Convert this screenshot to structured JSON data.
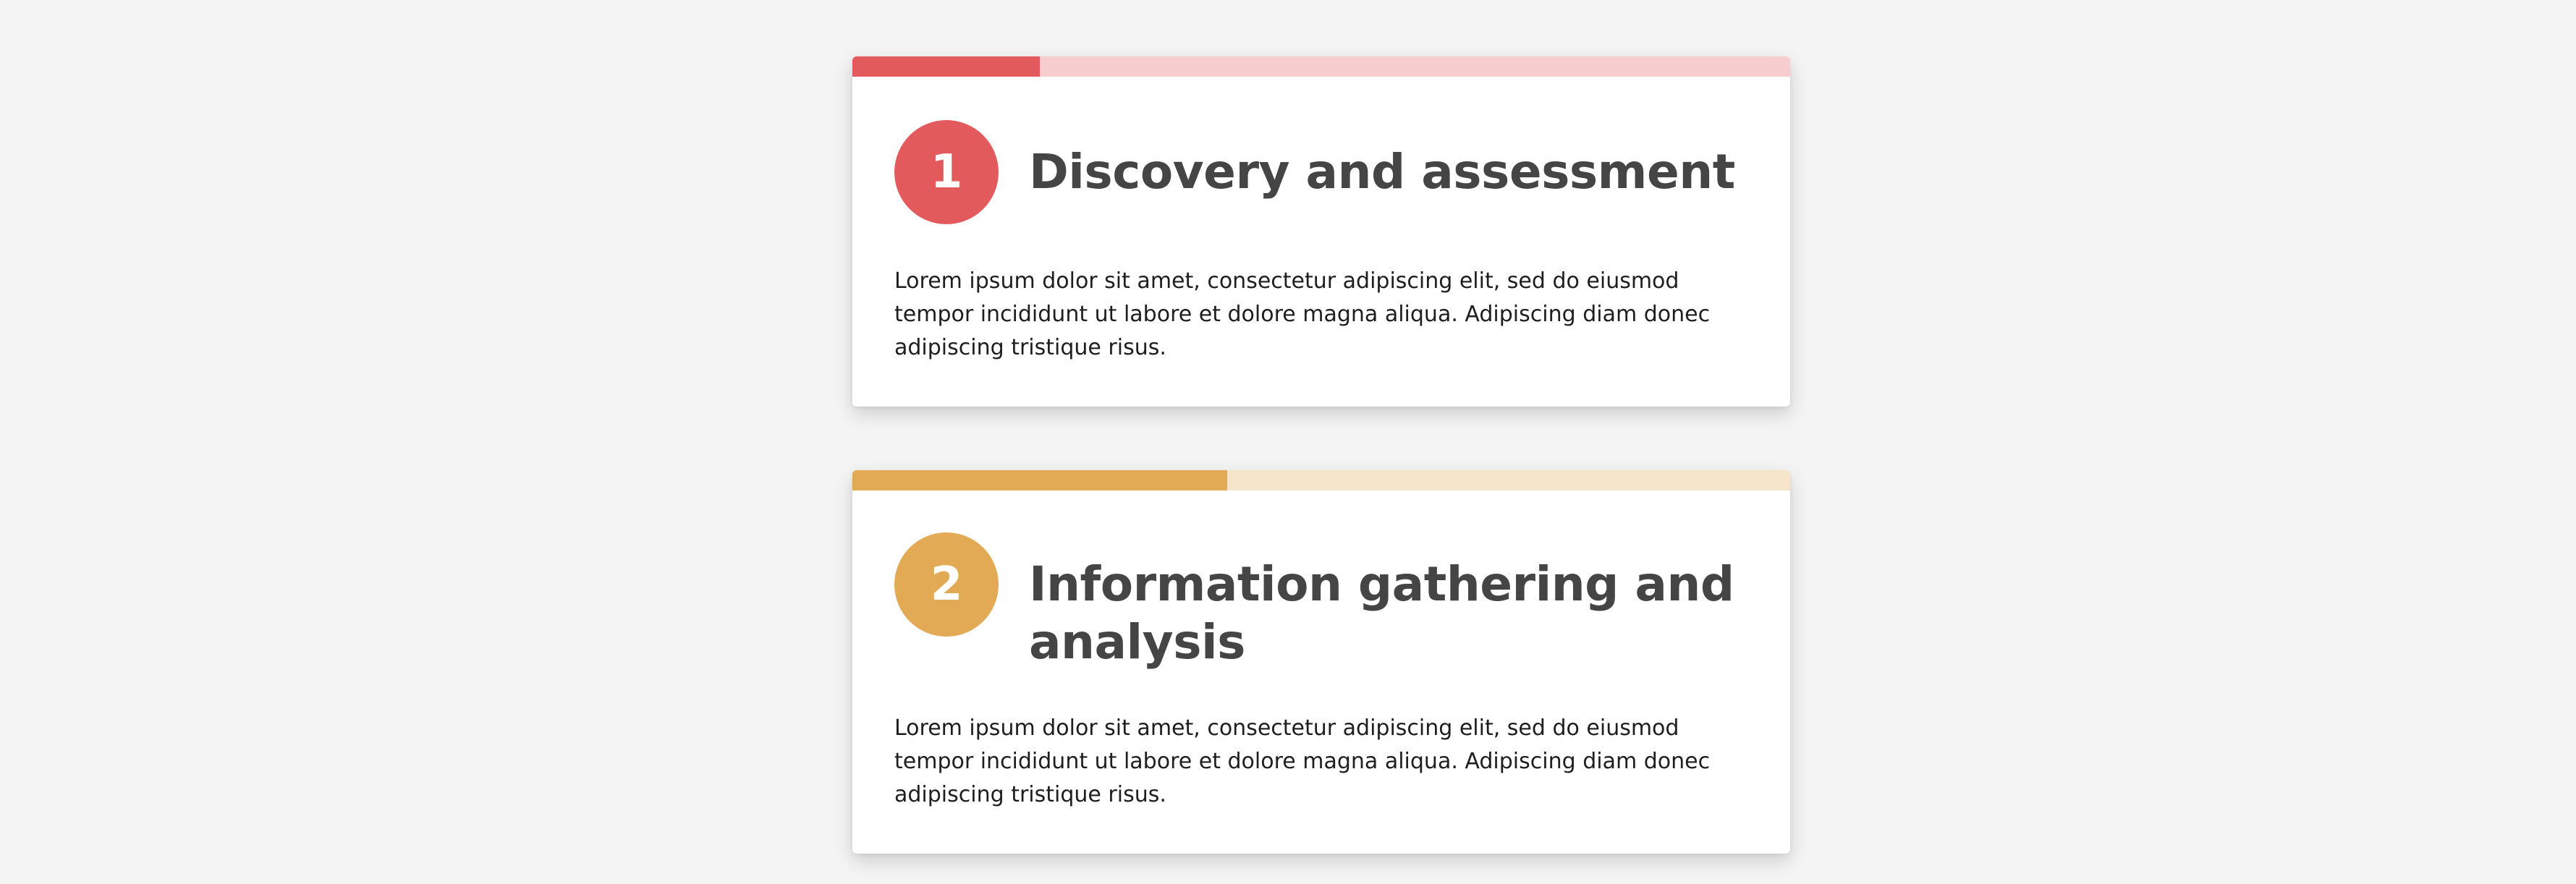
{
  "steps": [
    {
      "number": "1",
      "title": "Discovery and assessment",
      "body": "Lorem ipsum dolor sit amet, consectetur adipiscing elit, sed do eiusmod tempor incididunt ut labore et dolore magna aliqua. Adipiscing diam donec adipiscing tristique risus.",
      "accent_color": "#e35a5c",
      "track_color": "#f8cdcf",
      "progress_fraction": 0.2
    },
    {
      "number": "2",
      "title": "Information gathering and analysis",
      "body": "Lorem ipsum dolor sit amet, consectetur adipiscing elit, sed do eiusmod tempor incididunt ut labore et dolore magna aliqua. Adipiscing diam donec adipiscing tristique risus.",
      "accent_color": "#e2aa54",
      "track_color": "#f6e5c9",
      "progress_fraction": 0.4
    }
  ]
}
